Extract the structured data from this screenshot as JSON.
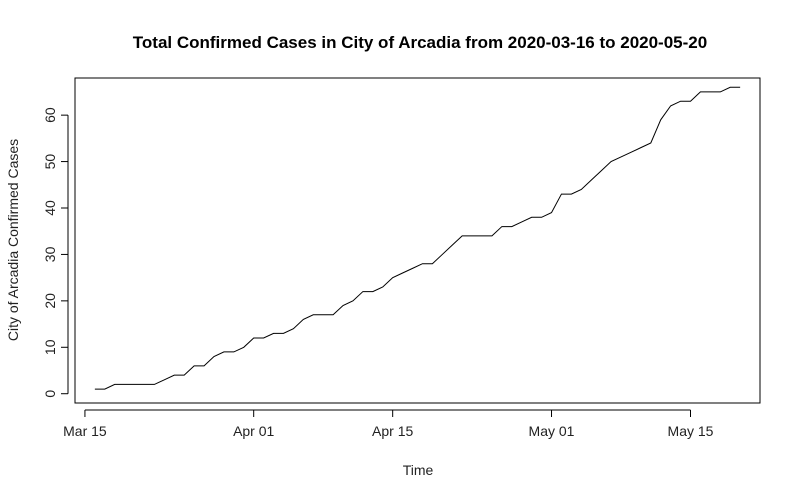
{
  "chart_data": {
    "type": "line",
    "title": "Total Confirmed Cases in City of Arcadia from 2020-03-16 to 2020-05-20",
    "xlabel": "Time",
    "ylabel": "City of Arcadia Confirmed Cases",
    "xlim": [
      "2020-03-14",
      "2020-05-22"
    ],
    "ylim": [
      -2,
      68
    ],
    "x_ticks": [
      {
        "date": "2020-03-15",
        "label": "Mar 15"
      },
      {
        "date": "2020-04-01",
        "label": "Apr 01"
      },
      {
        "date": "2020-04-15",
        "label": "Apr 15"
      },
      {
        "date": "2020-05-01",
        "label": "May 01"
      },
      {
        "date": "2020-05-15",
        "label": "May 15"
      }
    ],
    "y_ticks": [
      0,
      10,
      20,
      30,
      40,
      50,
      60
    ],
    "grid": false,
    "line_color": "#000000",
    "series": [
      {
        "x": [
          "2020-03-16",
          "2020-03-17",
          "2020-03-18",
          "2020-03-19",
          "2020-03-20",
          "2020-03-21",
          "2020-03-22",
          "2020-03-23",
          "2020-03-24",
          "2020-03-25",
          "2020-03-26",
          "2020-03-27",
          "2020-03-28",
          "2020-03-29",
          "2020-03-30",
          "2020-03-31",
          "2020-04-01",
          "2020-04-02",
          "2020-04-03",
          "2020-04-04",
          "2020-04-05",
          "2020-04-06",
          "2020-04-07",
          "2020-04-08",
          "2020-04-09",
          "2020-04-10",
          "2020-04-11",
          "2020-04-12",
          "2020-04-13",
          "2020-04-14",
          "2020-04-15",
          "2020-04-16",
          "2020-04-17",
          "2020-04-18",
          "2020-04-19",
          "2020-04-20",
          "2020-04-21",
          "2020-04-22",
          "2020-04-23",
          "2020-04-24",
          "2020-04-25",
          "2020-04-26",
          "2020-04-27",
          "2020-04-28",
          "2020-04-29",
          "2020-04-30",
          "2020-05-01",
          "2020-05-02",
          "2020-05-03",
          "2020-05-04",
          "2020-05-05",
          "2020-05-06",
          "2020-05-07",
          "2020-05-08",
          "2020-05-09",
          "2020-05-10",
          "2020-05-11",
          "2020-05-12",
          "2020-05-13",
          "2020-05-14",
          "2020-05-15",
          "2020-05-16",
          "2020-05-17",
          "2020-05-18",
          "2020-05-19",
          "2020-05-20"
        ],
        "values": [
          1,
          1,
          2,
          2,
          2,
          2,
          2,
          3,
          4,
          4,
          6,
          6,
          8,
          9,
          9,
          10,
          12,
          12,
          13,
          13,
          14,
          16,
          17,
          17,
          17,
          19,
          20,
          22,
          22,
          23,
          25,
          26,
          27,
          28,
          28,
          30,
          32,
          34,
          34,
          34,
          34,
          36,
          36,
          37,
          38,
          38,
          39,
          43,
          43,
          44,
          46,
          48,
          50,
          51,
          52,
          53,
          54,
          59,
          62,
          63,
          63,
          65,
          65,
          65,
          66,
          66
        ]
      }
    ]
  }
}
